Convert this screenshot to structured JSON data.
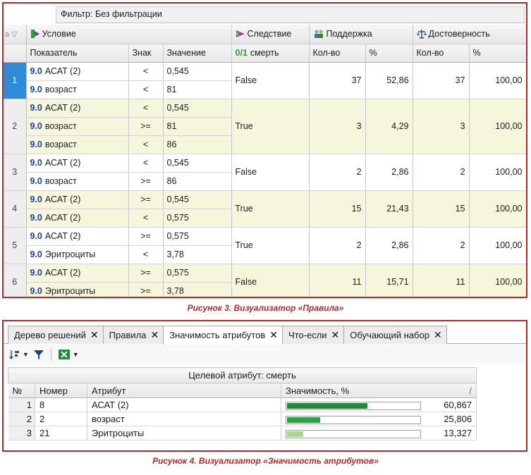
{
  "figure3": {
    "filter_label": "Фильтр: Без фильтрации",
    "gutter_header": "a",
    "headers": {
      "condition": "Условие",
      "consequence": "Следствие",
      "support": "Поддержка",
      "confidence": "Достоверность"
    },
    "subheaders": {
      "indicator": "Показатель",
      "sign": "Знак",
      "value": "Значение",
      "consequence_attr": "смерть",
      "support_count": "Кол-во",
      "support_pct": "%",
      "confidence_count": "Кол-во",
      "confidence_pct": "%"
    },
    "format_tag": "9.0",
    "rules": [
      {
        "num": "1",
        "conditions": [
          [
            "АСАТ (2)",
            "<",
            "0,545"
          ],
          [
            "возраст",
            "<",
            "81"
          ]
        ],
        "consequence": "False",
        "support_count": "37",
        "support_pct": "52,86",
        "confidence_count": "37",
        "confidence_pct": "100,00"
      },
      {
        "num": "2",
        "conditions": [
          [
            "АСАТ (2)",
            "<",
            "0,545"
          ],
          [
            "возраст",
            ">=",
            "81"
          ],
          [
            "возраст",
            "<",
            "86"
          ]
        ],
        "consequence": "True",
        "support_count": "3",
        "support_pct": "4,29",
        "confidence_count": "3",
        "confidence_pct": "100,00"
      },
      {
        "num": "3",
        "conditions": [
          [
            "АСАТ (2)",
            "<",
            "0,545"
          ],
          [
            "возраст",
            ">=",
            "86"
          ]
        ],
        "consequence": "False",
        "support_count": "2",
        "support_pct": "2,86",
        "confidence_count": "2",
        "confidence_pct": "100,00"
      },
      {
        "num": "4",
        "conditions": [
          [
            "АСАТ (2)",
            ">=",
            "0,545"
          ],
          [
            "АСАТ (2)",
            "<",
            "0,575"
          ]
        ],
        "consequence": "True",
        "support_count": "15",
        "support_pct": "21,43",
        "confidence_count": "15",
        "confidence_pct": "100,00"
      },
      {
        "num": "5",
        "conditions": [
          [
            "АСАТ (2)",
            ">=",
            "0,575"
          ],
          [
            "Эритроциты",
            "<",
            "3,78"
          ]
        ],
        "consequence": "True",
        "support_count": "2",
        "support_pct": "2,86",
        "confidence_count": "2",
        "confidence_pct": "100,00"
      },
      {
        "num": "6",
        "conditions": [
          [
            "АСАТ (2)",
            ">=",
            "0,575"
          ],
          [
            "Эритроциты",
            ">=",
            "3,78"
          ]
        ],
        "consequence": "False",
        "support_count": "11",
        "support_pct": "15,71",
        "confidence_count": "11",
        "confidence_pct": "100,00"
      }
    ],
    "caption": "Рисунок 3. Визуализатор «Правила»"
  },
  "figure4": {
    "tabs": [
      {
        "label": "Дерево решений",
        "active": false
      },
      {
        "label": "Правила",
        "active": false
      },
      {
        "label": "Значимость атрибутов",
        "active": true
      },
      {
        "label": "Что-если",
        "active": false
      },
      {
        "label": "Обучающий набор",
        "active": false
      }
    ],
    "close_glyph": "✕",
    "target_label": "Целевой атрибут: смерть",
    "columns": {
      "num": "№",
      "id": "Номер",
      "attribute": "Атрибут",
      "significance": "Значимость, %",
      "sort_mark": "/"
    },
    "rows": [
      {
        "num": "1",
        "id": "8",
        "attribute": "АСАТ (2)",
        "value": "60,867",
        "fraction": 0.60867,
        "bar_color": "#1e8a3a"
      },
      {
        "num": "2",
        "id": "2",
        "attribute": "возраст",
        "value": "25,806",
        "fraction": 0.25806,
        "bar_color": "#27a647"
      },
      {
        "num": "3",
        "id": "21",
        "attribute": "Эритроциты",
        "value": "13,327",
        "fraction": 0.13327,
        "bar_color": "#a8d88c"
      }
    ],
    "caption": "Рисунок 4.  Визуализатор «Значимость атрибутов»"
  },
  "colors": {
    "accent_border": "#b22a2a",
    "selected_row": "#2e8bd8",
    "alt_row": "#f6f6dc"
  },
  "icons": [
    "condition-icon",
    "consequence-icon",
    "support-icon",
    "confidence-icon",
    "format-icon",
    "sort-icon",
    "filter-icon",
    "excel-icon",
    "close-icon"
  ]
}
